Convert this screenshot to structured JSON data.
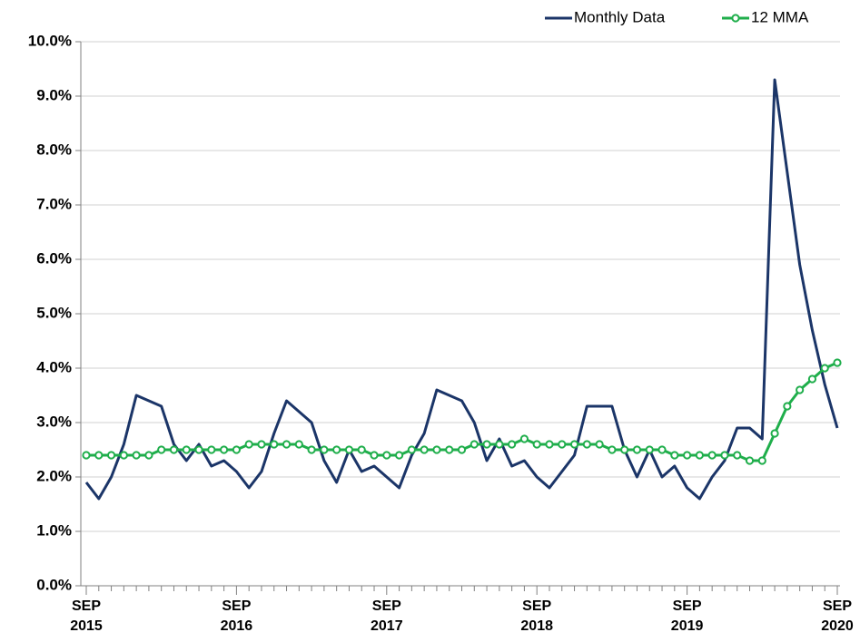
{
  "chart_data": {
    "type": "line",
    "categories": [
      "SEP 2015",
      null,
      null,
      null,
      null,
      null,
      null,
      null,
      null,
      null,
      null,
      null,
      "SEP 2016",
      null,
      null,
      null,
      null,
      null,
      null,
      null,
      null,
      null,
      null,
      null,
      "SEP 2017",
      null,
      null,
      null,
      null,
      null,
      null,
      null,
      null,
      null,
      null,
      null,
      "SEP 2018",
      null,
      null,
      null,
      null,
      null,
      null,
      null,
      null,
      null,
      null,
      null,
      "SEP 2019",
      null,
      null,
      null,
      null,
      null,
      null,
      null,
      null,
      null,
      null,
      null,
      "SEP 2020"
    ],
    "series": [
      {
        "name": "Monthly Data",
        "color": "#1b3568",
        "values": [
          1.9,
          1.6,
          2.0,
          2.6,
          3.5,
          3.4,
          3.3,
          2.6,
          2.3,
          2.6,
          2.2,
          2.3,
          2.1,
          1.8,
          2.1,
          2.8,
          3.4,
          3.2,
          3.0,
          2.3,
          1.9,
          2.5,
          2.1,
          2.2,
          2.0,
          1.8,
          2.4,
          2.8,
          3.6,
          3.5,
          3.4,
          3.0,
          2.3,
          2.7,
          2.2,
          2.3,
          2.0,
          1.8,
          2.1,
          2.4,
          3.3,
          3.3,
          3.3,
          2.5,
          2.0,
          2.5,
          2.0,
          2.2,
          1.8,
          1.6,
          2.0,
          2.3,
          2.9,
          2.9,
          2.7,
          9.3,
          7.6,
          5.9,
          4.7,
          3.7,
          2.9
        ]
      },
      {
        "name": "12 MMA",
        "color": "#1fae4b",
        "marker": "circle",
        "values": [
          2.4,
          2.4,
          2.4,
          2.4,
          2.4,
          2.4,
          2.5,
          2.5,
          2.5,
          2.5,
          2.5,
          2.5,
          2.5,
          2.6,
          2.6,
          2.6,
          2.6,
          2.6,
          2.5,
          2.5,
          2.5,
          2.5,
          2.5,
          2.4,
          2.4,
          2.4,
          2.5,
          2.5,
          2.5,
          2.5,
          2.5,
          2.6,
          2.6,
          2.6,
          2.6,
          2.7,
          2.6,
          2.6,
          2.6,
          2.6,
          2.6,
          2.6,
          2.5,
          2.5,
          2.5,
          2.5,
          2.5,
          2.4,
          2.4,
          2.4,
          2.4,
          2.4,
          2.4,
          2.3,
          2.3,
          2.8,
          3.3,
          3.6,
          3.8,
          4.0,
          4.1
        ]
      }
    ],
    "ylim": [
      0,
      10
    ],
    "yticks": [
      {
        "value": 0,
        "label": "0.0%"
      },
      {
        "value": 1,
        "label": "1.0%"
      },
      {
        "value": 2,
        "label": "2.0%"
      },
      {
        "value": 3,
        "label": "3.0%"
      },
      {
        "value": 4,
        "label": "4.0%"
      },
      {
        "value": 5,
        "label": "5.0%"
      },
      {
        "value": 6,
        "label": "6.0%"
      },
      {
        "value": 7,
        "label": "7.0%"
      },
      {
        "value": 8,
        "label": "8.0%"
      },
      {
        "value": 9,
        "label": "9.0%"
      },
      {
        "value": 10,
        "label": "10.0%"
      }
    ],
    "grid": true,
    "legend": "top-right"
  }
}
